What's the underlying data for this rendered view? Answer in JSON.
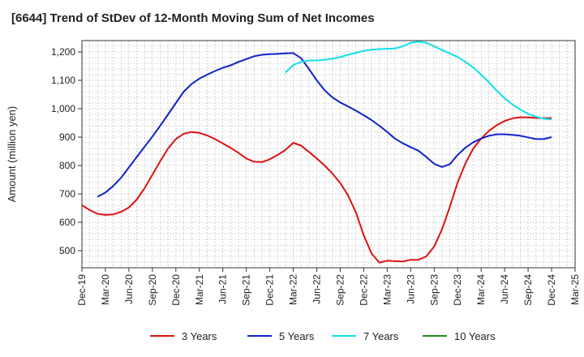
{
  "chart_data": {
    "type": "line",
    "title": "[6644]  Trend of StDev of 12-Month Moving Sum of Net Incomes",
    "xlabel": "",
    "ylabel": "Amount (million yen)",
    "ylim": [
      440,
      1240
    ],
    "yticks": [
      500,
      600,
      700,
      800,
      900,
      1000,
      1100,
      1200
    ],
    "ytick_labels": [
      "500",
      "600",
      "700",
      "800",
      "900",
      "1,000",
      "1,100",
      "1,200"
    ],
    "xlim": [
      "2019-12",
      "2025-03"
    ],
    "xtick_labels": [
      "Dec-19",
      "Mar-20",
      "Jun-20",
      "Sep-20",
      "Dec-20",
      "Mar-21",
      "Jun-21",
      "Sep-21",
      "Dec-21",
      "Mar-22",
      "Jun-22",
      "Sep-22",
      "Dec-22",
      "Mar-23",
      "Jun-23",
      "Sep-23",
      "Dec-23",
      "Mar-24",
      "Jun-24",
      "Sep-24",
      "Dec-24",
      "Mar-25"
    ],
    "grid": true,
    "legend_position": "bottom",
    "series": [
      {
        "name": "3 Years",
        "color": "#dd1111",
        "x": [
          "2019-12",
          "2020-01",
          "2020-02",
          "2020-03",
          "2020-04",
          "2020-05",
          "2020-06",
          "2020-07",
          "2020-08",
          "2020-09",
          "2020-10",
          "2020-11",
          "2020-12",
          "2021-01",
          "2021-02",
          "2021-03",
          "2021-04",
          "2021-05",
          "2021-06",
          "2021-07",
          "2021-08",
          "2021-09",
          "2021-10",
          "2021-11",
          "2021-12",
          "2022-01",
          "2022-02",
          "2022-03",
          "2022-04",
          "2022-05",
          "2022-06",
          "2022-07",
          "2022-08",
          "2022-09",
          "2022-10",
          "2022-11",
          "2022-12",
          "2023-01",
          "2023-02",
          "2023-03",
          "2023-04",
          "2023-05",
          "2023-06",
          "2023-07",
          "2023-08",
          "2023-09",
          "2023-10",
          "2023-11",
          "2023-12",
          "2024-01",
          "2024-02",
          "2024-03",
          "2024-04",
          "2024-05",
          "2024-06",
          "2024-07",
          "2024-08",
          "2024-09",
          "2024-10",
          "2024-11",
          "2024-12"
        ],
        "values": [
          660,
          643,
          630,
          626,
          628,
          637,
          652,
          680,
          720,
          768,
          815,
          860,
          893,
          912,
          918,
          915,
          906,
          893,
          878,
          862,
          845,
          825,
          813,
          812,
          822,
          837,
          855,
          880,
          870,
          848,
          825,
          800,
          772,
          738,
          695,
          635,
          555,
          490,
          458,
          465,
          463,
          462,
          468,
          468,
          480,
          515,
          575,
          655,
          740,
          808,
          860,
          895,
          922,
          942,
          957,
          966,
          970,
          969,
          968,
          967,
          967
        ]
      },
      {
        "name": "5 Years",
        "color": "#1122cc",
        "x": [
          "2020-02",
          "2020-03",
          "2020-04",
          "2020-05",
          "2020-06",
          "2020-07",
          "2020-08",
          "2020-09",
          "2020-10",
          "2020-11",
          "2020-12",
          "2021-01",
          "2021-02",
          "2021-03",
          "2021-04",
          "2021-05",
          "2021-06",
          "2021-07",
          "2021-08",
          "2021-09",
          "2021-10",
          "2021-11",
          "2021-12",
          "2022-01",
          "2022-02",
          "2022-03",
          "2022-04",
          "2022-05",
          "2022-06",
          "2022-07",
          "2022-08",
          "2022-09",
          "2022-10",
          "2022-11",
          "2022-12",
          "2023-01",
          "2023-02",
          "2023-03",
          "2023-04",
          "2023-05",
          "2023-06",
          "2023-07",
          "2023-08",
          "2023-09",
          "2023-10",
          "2023-11",
          "2023-12",
          "2024-01",
          "2024-02",
          "2024-03",
          "2024-04",
          "2024-05",
          "2024-06",
          "2024-07",
          "2024-08",
          "2024-09",
          "2024-10",
          "2024-11",
          "2024-12"
        ],
        "values": [
          690,
          705,
          728,
          757,
          793,
          830,
          866,
          902,
          940,
          980,
          1020,
          1060,
          1087,
          1106,
          1120,
          1133,
          1144,
          1153,
          1165,
          1175,
          1185,
          1190,
          1192,
          1193,
          1195,
          1196,
          1178,
          1140,
          1100,
          1065,
          1040,
          1022,
          1008,
          993,
          977,
          960,
          940,
          918,
          895,
          878,
          865,
          852,
          830,
          806,
          795,
          805,
          837,
          863,
          882,
          895,
          905,
          910,
          910,
          908,
          905,
          899,
          893,
          893,
          900
        ]
      },
      {
        "name": "7 Years",
        "color": "#11e0e8",
        "x": [
          "2022-02",
          "2022-03",
          "2022-04",
          "2022-05",
          "2022-06",
          "2022-07",
          "2022-08",
          "2022-09",
          "2022-10",
          "2022-11",
          "2022-12",
          "2023-01",
          "2023-02",
          "2023-03",
          "2023-04",
          "2023-05",
          "2023-06",
          "2023-07",
          "2023-08",
          "2023-09",
          "2023-10",
          "2023-11",
          "2023-12",
          "2024-01",
          "2024-02",
          "2024-03",
          "2024-04",
          "2024-05",
          "2024-06",
          "2024-07",
          "2024-08",
          "2024-09",
          "2024-10",
          "2024-11",
          "2024-12"
        ],
        "values": [
          1127,
          1154,
          1165,
          1170,
          1170,
          1172,
          1176,
          1182,
          1190,
          1197,
          1204,
          1208,
          1210,
          1211,
          1212,
          1220,
          1232,
          1236,
          1232,
          1220,
          1207,
          1195,
          1182,
          1165,
          1145,
          1120,
          1093,
          1063,
          1037,
          1015,
          997,
          982,
          972,
          965,
          962
        ]
      },
      {
        "name": "10 Years",
        "color": "#228822",
        "x": [],
        "values": []
      }
    ]
  }
}
